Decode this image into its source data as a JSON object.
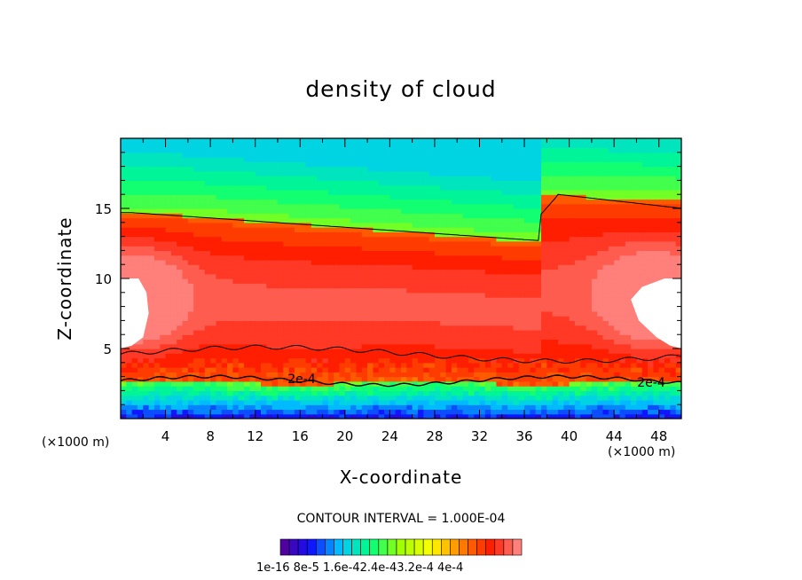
{
  "chart_data": {
    "type": "heatmap",
    "title": "density of cloud",
    "xlabel": "X-coordinate",
    "ylabel": "Z-coordinate",
    "x_unit": "(×1000 m)",
    "x_ticks": [
      4,
      8,
      12,
      16,
      20,
      24,
      28,
      32,
      36,
      40,
      44,
      48
    ],
    "y_ticks": [
      5,
      10,
      15
    ],
    "xlim": [
      0,
      50
    ],
    "ylim": [
      0,
      20
    ],
    "contour_interval_text": "CONTOUR INTERVAL = 1.000E-04",
    "contour_label": "2e-4",
    "colorbar_labels_text": "1e-16  8e-5  1.6e-42.4e-43.2e-4  4e-4",
    "colorbar_range": [
      0,
      0.00045
    ],
    "colorbar_steps": 27,
    "colormap": [
      "#5a0090",
      "#1010ff",
      "#00c8ff",
      "#00ff80",
      "#a0ff00",
      "#ffff00",
      "#ff8000",
      "#ff1a00",
      "#ff9090"
    ],
    "contour_levels": [
      0.0001,
      0.0002,
      0.0003
    ]
  }
}
